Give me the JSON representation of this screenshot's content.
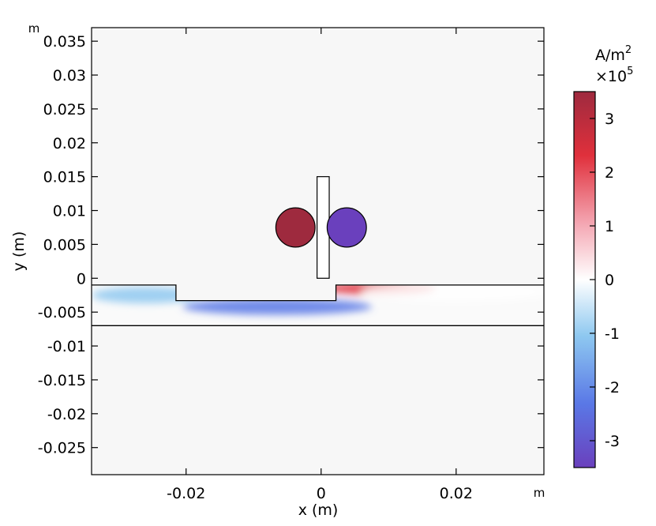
{
  "chart_data": {
    "type": "heatmap",
    "title": "",
    "xlabel": "x (m)",
    "ylabel": "y (m)",
    "x_unit": "m",
    "y_unit": "m",
    "xlim": [
      -0.034,
      0.033
    ],
    "ylim": [
      -0.029,
      0.037
    ],
    "x_ticks": [
      -0.02,
      0,
      0.02
    ],
    "x_tick_labels": [
      "-0.02",
      "0",
      "0.02"
    ],
    "y_ticks": [
      0.035,
      0.03,
      0.025,
      0.02,
      0.015,
      0.01,
      0.005,
      0,
      -0.005,
      -0.01,
      -0.015,
      -0.02,
      -0.025
    ],
    "y_tick_labels": [
      "0.035",
      "0.03",
      "0.025",
      "0.02",
      "0.015",
      "0.01",
      "0.005",
      "0",
      "-0.005",
      "-0.01",
      "-0.015",
      "-0.02",
      "-0.025"
    ],
    "grid": false,
    "colorbar": {
      "unit_label": "A/m",
      "unit_exp": "2",
      "scale_label": "×10",
      "scale_exp": "5",
      "range": [
        -3.5,
        3.5
      ],
      "ticks": [
        3,
        2,
        1,
        0,
        -1,
        -2,
        -3
      ],
      "tick_labels": [
        "3",
        "2",
        "1",
        "0",
        "-1",
        "-2",
        "-3"
      ],
      "colors": [
        "#6a40bd",
        "#5a78e6",
        "#8ec8f0",
        "#ffffff",
        "#f4a6b2",
        "#e0303c",
        "#9e2a3e"
      ]
    },
    "geometry": {
      "plate_top": -0.001,
      "plate_bottom": -0.007,
      "notch_x": [
        -0.0215,
        0.0022
      ],
      "notch_bottom": -0.0033,
      "divider_x": [
        -0.0006,
        0.0012
      ],
      "divider_y": [
        0,
        0.015
      ],
      "left_coil": {
        "cx": -0.0038,
        "cy": 0.0075,
        "r": 0.0029,
        "color": "#9e2a3e"
      },
      "right_coil": {
        "cx": 0.0038,
        "cy": 0.0075,
        "r": 0.0029,
        "color": "#6a40bd"
      }
    },
    "field_regions": [
      {
        "name": "negative-eddy",
        "cx": -0.0065,
        "cy": -0.0042,
        "rx": 0.014,
        "ry": 0.0012,
        "peak": -2.2
      },
      {
        "name": "negative-edge",
        "cx": -0.026,
        "cy": -0.0025,
        "rx": 0.008,
        "ry": 0.0012,
        "peak": -0.6
      },
      {
        "name": "positive-eddy",
        "cx": 0.0085,
        "cy": -0.0015,
        "rx": 0.0085,
        "ry": 0.0009,
        "peak": 2.6
      },
      {
        "name": "positive-tail",
        "cx": 0.02,
        "cy": -0.002,
        "rx": 0.014,
        "ry": 0.0014,
        "peak": 0.5
      }
    ]
  }
}
